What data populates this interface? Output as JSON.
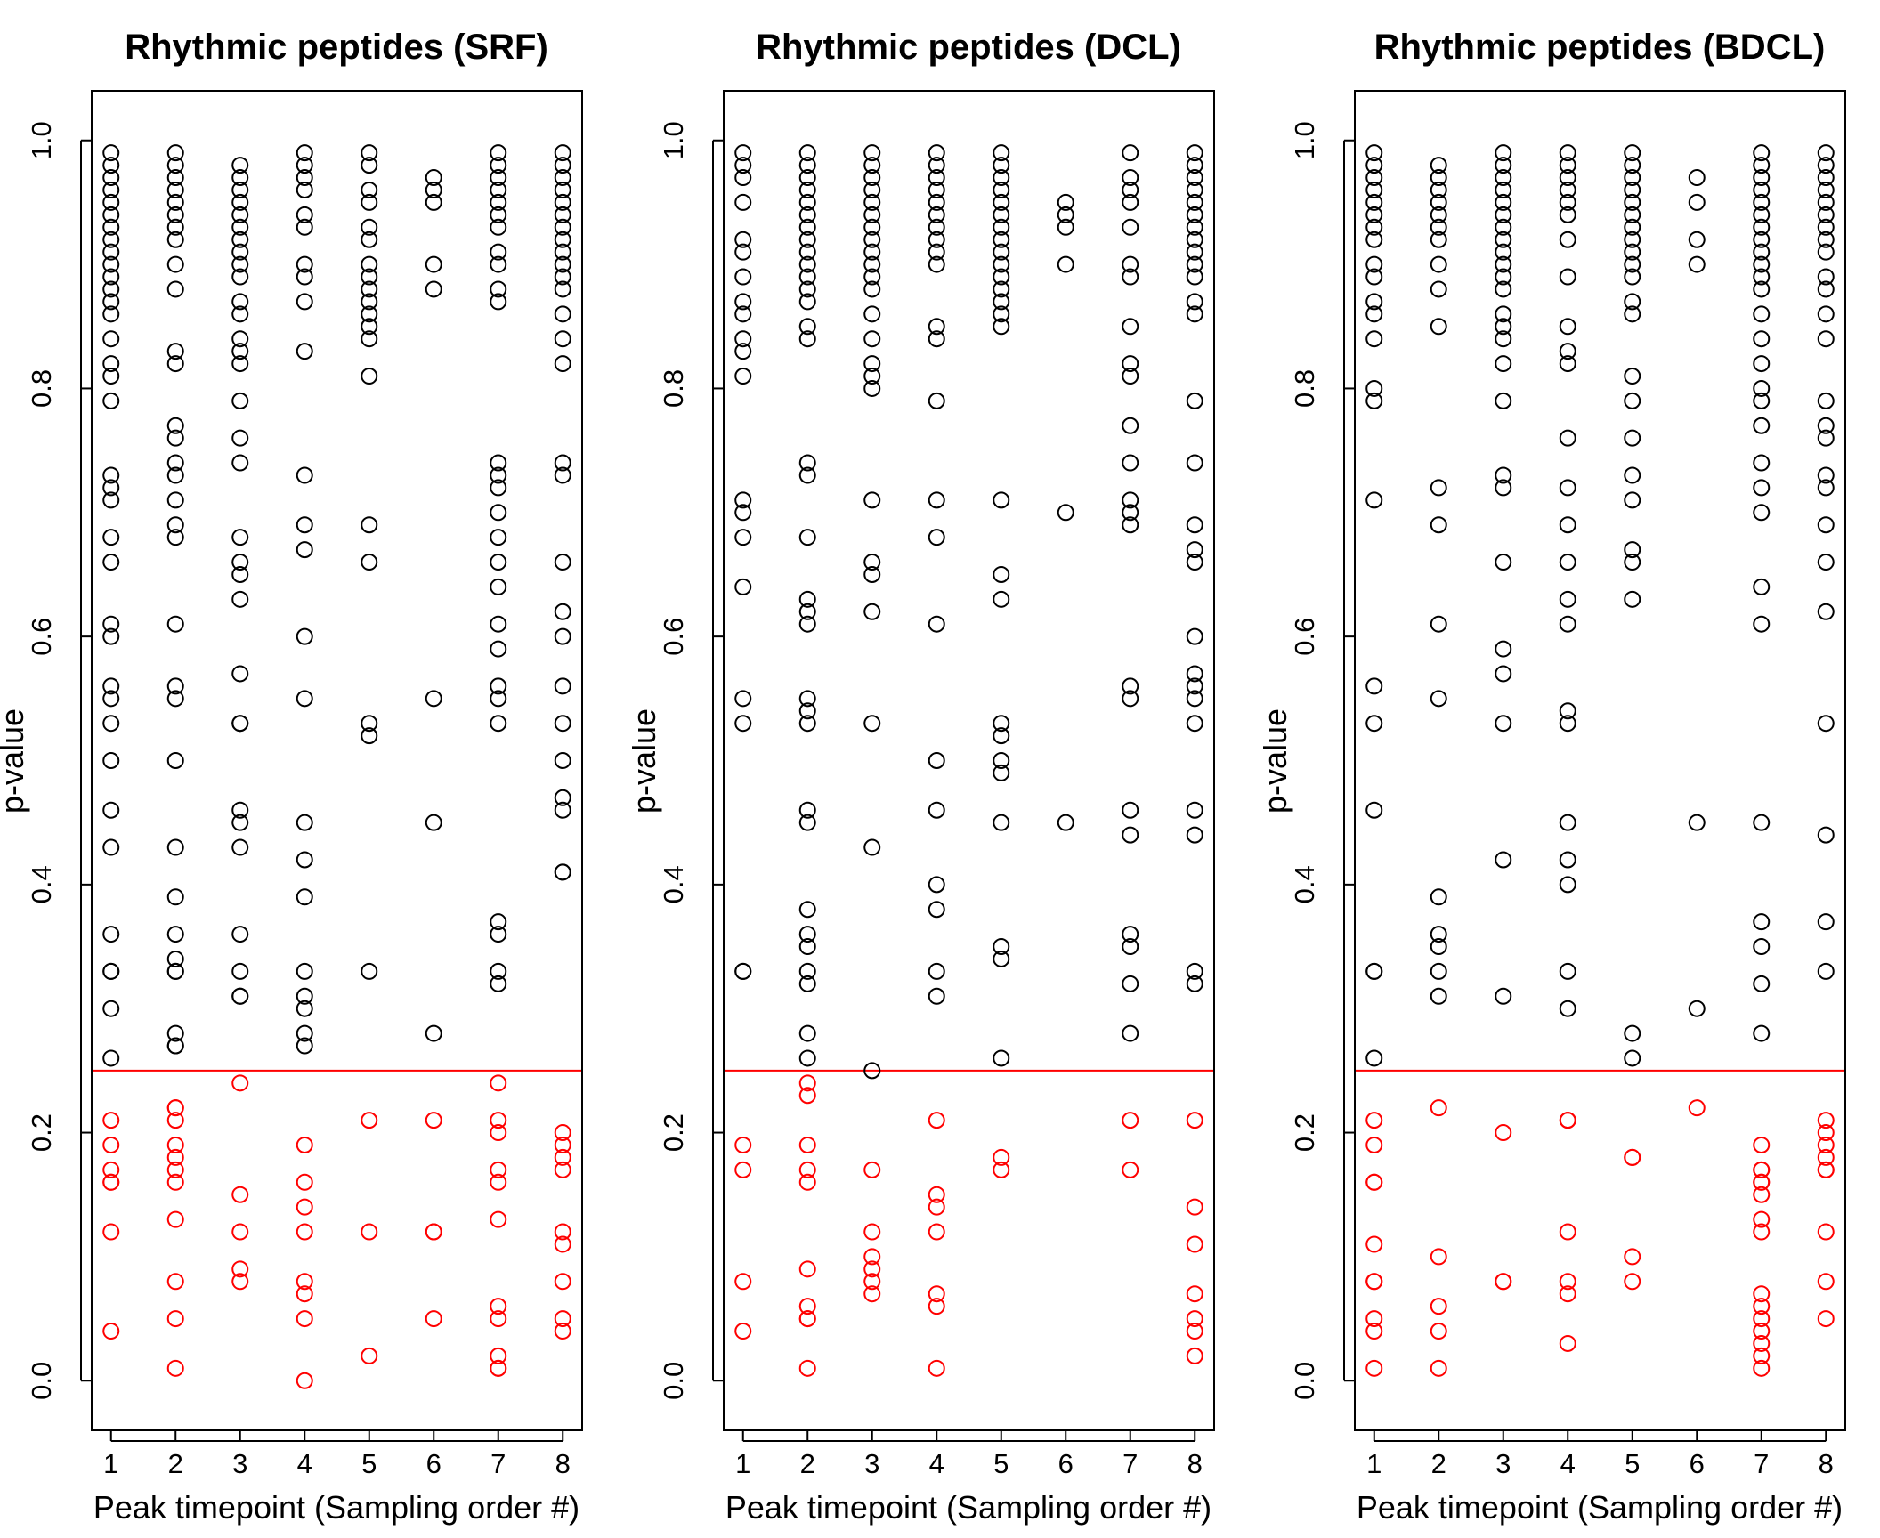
{
  "chart_data": [
    {
      "type": "scatter",
      "title": "Rhythmic peptides (SRF)",
      "xlabel": "Peak timepoint (Sampling order #)",
      "ylabel": "p-value",
      "xticks": [
        "1",
        "2",
        "3",
        "4",
        "5",
        "6",
        "7",
        "8"
      ],
      "yticks": [
        "0.0",
        "0.2",
        "0.4",
        "0.6",
        "0.8",
        "1.0"
      ],
      "xlim": [
        0.7,
        8.3
      ],
      "ylim": [
        -0.04,
        1.04
      ],
      "threshold": 0.25,
      "colors": {
        "above": "#000000",
        "below": "#ff0000",
        "threshold_line": "#ff0000"
      },
      "points": {
        "1": [
          0.99,
          0.98,
          0.97,
          0.96,
          0.95,
          0.94,
          0.93,
          0.92,
          0.91,
          0.9,
          0.89,
          0.88,
          0.87,
          0.86,
          0.84,
          0.82,
          0.81,
          0.79,
          0.73,
          0.72,
          0.71,
          0.68,
          0.66,
          0.61,
          0.6,
          0.56,
          0.55,
          0.53,
          0.5,
          0.46,
          0.43,
          0.36,
          0.33,
          0.33,
          0.3,
          0.26,
          0.21,
          0.19,
          0.17,
          0.16,
          0.16,
          0.12,
          0.04
        ],
        "2": [
          0.99,
          0.98,
          0.97,
          0.96,
          0.95,
          0.94,
          0.93,
          0.92,
          0.9,
          0.88,
          0.83,
          0.82,
          0.77,
          0.76,
          0.74,
          0.73,
          0.71,
          0.69,
          0.68,
          0.61,
          0.56,
          0.55,
          0.5,
          0.43,
          0.39,
          0.36,
          0.34,
          0.33,
          0.33,
          0.28,
          0.27,
          0.27,
          0.22,
          0.22,
          0.21,
          0.19,
          0.18,
          0.17,
          0.16,
          0.13,
          0.08,
          0.05,
          0.01
        ],
        "3": [
          0.98,
          0.97,
          0.96,
          0.95,
          0.94,
          0.93,
          0.92,
          0.91,
          0.9,
          0.89,
          0.87,
          0.86,
          0.84,
          0.83,
          0.82,
          0.79,
          0.76,
          0.74,
          0.68,
          0.66,
          0.65,
          0.63,
          0.57,
          0.53,
          0.53,
          0.46,
          0.45,
          0.43,
          0.36,
          0.33,
          0.31,
          0.31,
          0.24,
          0.15,
          0.12,
          0.09,
          0.08
        ],
        "4": [
          0.99,
          0.98,
          0.97,
          0.96,
          0.94,
          0.93,
          0.9,
          0.89,
          0.87,
          0.83,
          0.73,
          0.69,
          0.67,
          0.6,
          0.55,
          0.45,
          0.42,
          0.39,
          0.33,
          0.31,
          0.3,
          0.28,
          0.27,
          0.19,
          0.16,
          0.14,
          0.12,
          0.08,
          0.07,
          0.05,
          0.0
        ],
        "5": [
          0.99,
          0.98,
          0.96,
          0.95,
          0.93,
          0.92,
          0.9,
          0.89,
          0.88,
          0.87,
          0.86,
          0.85,
          0.84,
          0.81,
          0.69,
          0.66,
          0.53,
          0.52,
          0.33,
          0.21,
          0.12,
          0.02
        ],
        "6": [
          0.97,
          0.96,
          0.95,
          0.9,
          0.88,
          0.55,
          0.45,
          0.28,
          0.21,
          0.12,
          0.12,
          0.05
        ],
        "7": [
          0.99,
          0.98,
          0.97,
          0.96,
          0.95,
          0.94,
          0.93,
          0.91,
          0.9,
          0.88,
          0.87,
          0.74,
          0.73,
          0.72,
          0.7,
          0.68,
          0.66,
          0.64,
          0.61,
          0.59,
          0.56,
          0.55,
          0.53,
          0.37,
          0.36,
          0.33,
          0.32,
          0.24,
          0.21,
          0.2,
          0.17,
          0.16,
          0.13,
          0.06,
          0.05,
          0.02,
          0.01,
          0.01
        ],
        "8": [
          0.99,
          0.98,
          0.97,
          0.96,
          0.95,
          0.94,
          0.93,
          0.92,
          0.91,
          0.9,
          0.89,
          0.88,
          0.86,
          0.84,
          0.82,
          0.74,
          0.73,
          0.66,
          0.62,
          0.6,
          0.56,
          0.53,
          0.5,
          0.47,
          0.46,
          0.41,
          0.41,
          0.2,
          0.19,
          0.18,
          0.17,
          0.12,
          0.11,
          0.08,
          0.05,
          0.04
        ]
      }
    },
    {
      "type": "scatter",
      "title": "Rhythmic peptides (DCL)",
      "xlabel": "Peak timepoint (Sampling order #)",
      "ylabel": "p-value",
      "xticks": [
        "1",
        "2",
        "3",
        "4",
        "5",
        "6",
        "7",
        "8"
      ],
      "yticks": [
        "0.0",
        "0.2",
        "0.4",
        "0.6",
        "0.8",
        "1.0"
      ],
      "xlim": [
        0.7,
        8.3
      ],
      "ylim": [
        -0.04,
        1.04
      ],
      "threshold": 0.25,
      "colors": {
        "above": "#000000",
        "below": "#ff0000",
        "threshold_line": "#ff0000"
      },
      "points": {
        "1": [
          0.99,
          0.98,
          0.97,
          0.95,
          0.92,
          0.91,
          0.89,
          0.87,
          0.86,
          0.84,
          0.83,
          0.81,
          0.71,
          0.7,
          0.68,
          0.64,
          0.55,
          0.53,
          0.33,
          0.33,
          0.19,
          0.17,
          0.08,
          0.04
        ],
        "2": [
          0.99,
          0.98,
          0.97,
          0.96,
          0.95,
          0.94,
          0.93,
          0.92,
          0.91,
          0.9,
          0.89,
          0.88,
          0.87,
          0.85,
          0.84,
          0.74,
          0.73,
          0.68,
          0.63,
          0.62,
          0.61,
          0.55,
          0.54,
          0.53,
          0.46,
          0.45,
          0.38,
          0.36,
          0.35,
          0.33,
          0.32,
          0.28,
          0.26,
          0.24,
          0.23,
          0.19,
          0.17,
          0.16,
          0.09,
          0.06,
          0.05,
          0.05,
          0.01
        ],
        "3": [
          0.99,
          0.98,
          0.97,
          0.96,
          0.95,
          0.94,
          0.93,
          0.92,
          0.91,
          0.9,
          0.89,
          0.88,
          0.86,
          0.84,
          0.82,
          0.81,
          0.8,
          0.71,
          0.66,
          0.65,
          0.62,
          0.53,
          0.43,
          0.25,
          0.17,
          0.12,
          0.1,
          0.09,
          0.08,
          0.07
        ],
        "4": [
          0.99,
          0.98,
          0.97,
          0.96,
          0.95,
          0.94,
          0.93,
          0.92,
          0.91,
          0.9,
          0.85,
          0.84,
          0.79,
          0.71,
          0.68,
          0.61,
          0.5,
          0.46,
          0.4,
          0.38,
          0.33,
          0.31,
          0.21,
          0.15,
          0.14,
          0.12,
          0.07,
          0.06,
          0.01
        ],
        "5": [
          0.99,
          0.98,
          0.97,
          0.96,
          0.95,
          0.94,
          0.93,
          0.92,
          0.91,
          0.9,
          0.89,
          0.88,
          0.87,
          0.86,
          0.85,
          0.71,
          0.65,
          0.63,
          0.53,
          0.52,
          0.5,
          0.49,
          0.45,
          0.35,
          0.34,
          0.26,
          0.18,
          0.17
        ],
        "6": [
          0.95,
          0.94,
          0.93,
          0.9,
          0.7,
          0.45
        ],
        "7": [
          0.99,
          0.97,
          0.96,
          0.95,
          0.93,
          0.9,
          0.89,
          0.85,
          0.82,
          0.81,
          0.77,
          0.74,
          0.71,
          0.7,
          0.69,
          0.56,
          0.55,
          0.46,
          0.44,
          0.36,
          0.35,
          0.32,
          0.28,
          0.21,
          0.17
        ],
        "8": [
          0.99,
          0.98,
          0.97,
          0.96,
          0.95,
          0.94,
          0.93,
          0.92,
          0.91,
          0.9,
          0.89,
          0.87,
          0.86,
          0.79,
          0.74,
          0.69,
          0.67,
          0.66,
          0.6,
          0.57,
          0.56,
          0.55,
          0.53,
          0.46,
          0.44,
          0.33,
          0.32,
          0.21,
          0.14,
          0.11,
          0.07,
          0.05,
          0.04,
          0.02
        ]
      }
    },
    {
      "type": "scatter",
      "title": "Rhythmic peptides (BDCL)",
      "xlabel": "Peak timepoint (Sampling order #)",
      "ylabel": "p-value",
      "xticks": [
        "1",
        "2",
        "3",
        "4",
        "5",
        "6",
        "7",
        "8"
      ],
      "yticks": [
        "0.0",
        "0.2",
        "0.4",
        "0.6",
        "0.8",
        "1.0"
      ],
      "xlim": [
        0.7,
        8.3
      ],
      "ylim": [
        -0.04,
        1.04
      ],
      "threshold": 0.25,
      "colors": {
        "above": "#000000",
        "below": "#ff0000",
        "threshold_line": "#ff0000"
      },
      "points": {
        "1": [
          0.99,
          0.98,
          0.97,
          0.96,
          0.95,
          0.94,
          0.93,
          0.92,
          0.9,
          0.89,
          0.87,
          0.86,
          0.84,
          0.8,
          0.79,
          0.71,
          0.56,
          0.53,
          0.46,
          0.33,
          0.33,
          0.26,
          0.21,
          0.19,
          0.16,
          0.16,
          0.11,
          0.08,
          0.08,
          0.05,
          0.04,
          0.01
        ],
        "2": [
          0.98,
          0.97,
          0.96,
          0.95,
          0.94,
          0.93,
          0.92,
          0.9,
          0.88,
          0.85,
          0.72,
          0.69,
          0.61,
          0.55,
          0.39,
          0.36,
          0.35,
          0.33,
          0.31,
          0.22,
          0.1,
          0.06,
          0.04,
          0.01
        ],
        "3": [
          0.99,
          0.98,
          0.97,
          0.96,
          0.95,
          0.94,
          0.93,
          0.92,
          0.91,
          0.9,
          0.89,
          0.88,
          0.86,
          0.85,
          0.84,
          0.82,
          0.79,
          0.73,
          0.72,
          0.66,
          0.59,
          0.57,
          0.53,
          0.42,
          0.31,
          0.2,
          0.08,
          0.08
        ],
        "4": [
          0.99,
          0.98,
          0.97,
          0.96,
          0.95,
          0.94,
          0.92,
          0.89,
          0.85,
          0.83,
          0.82,
          0.76,
          0.72,
          0.69,
          0.66,
          0.63,
          0.61,
          0.54,
          0.53,
          0.45,
          0.42,
          0.4,
          0.33,
          0.3,
          0.21,
          0.21,
          0.12,
          0.08,
          0.07,
          0.03
        ],
        "5": [
          0.99,
          0.98,
          0.97,
          0.96,
          0.95,
          0.94,
          0.93,
          0.92,
          0.91,
          0.9,
          0.89,
          0.87,
          0.86,
          0.81,
          0.79,
          0.76,
          0.73,
          0.71,
          0.67,
          0.66,
          0.63,
          0.28,
          0.26,
          0.18,
          0.18,
          0.1,
          0.08
        ],
        "6": [
          0.97,
          0.95,
          0.92,
          0.9,
          0.45,
          0.3,
          0.22
        ],
        "7": [
          0.99,
          0.98,
          0.97,
          0.96,
          0.95,
          0.94,
          0.93,
          0.92,
          0.91,
          0.9,
          0.89,
          0.88,
          0.86,
          0.84,
          0.82,
          0.8,
          0.79,
          0.77,
          0.74,
          0.72,
          0.7,
          0.64,
          0.61,
          0.45,
          0.37,
          0.35,
          0.32,
          0.28,
          0.19,
          0.17,
          0.17,
          0.16,
          0.16,
          0.15,
          0.13,
          0.12,
          0.07,
          0.06,
          0.05,
          0.04,
          0.03,
          0.02,
          0.01
        ],
        "8": [
          0.99,
          0.98,
          0.97,
          0.96,
          0.95,
          0.94,
          0.93,
          0.92,
          0.91,
          0.89,
          0.88,
          0.86,
          0.84,
          0.79,
          0.77,
          0.76,
          0.73,
          0.72,
          0.69,
          0.66,
          0.62,
          0.53,
          0.44,
          0.37,
          0.33,
          0.21,
          0.2,
          0.19,
          0.18,
          0.17,
          0.17,
          0.12,
          0.08,
          0.05
        ]
      }
    }
  ]
}
